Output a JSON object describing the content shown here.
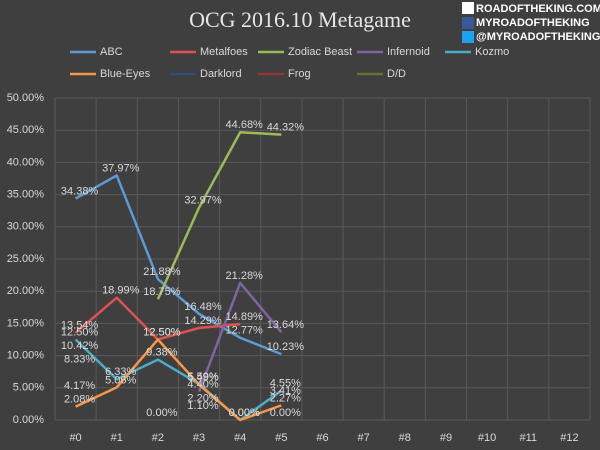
{
  "chart_data": {
    "type": "line",
    "title": "OCG 2016.10 Metagame",
    "watermark": [
      "ROADOFTHEKING.COM",
      "MYROADOFTHEKING",
      "@MYROADOFTHEKING"
    ],
    "categories": [
      "#0",
      "#1",
      "#2",
      "#3",
      "#4",
      "#5",
      "#6",
      "#7",
      "#8",
      "#9",
      "#10",
      "#11",
      "#12"
    ],
    "ylim": [
      0,
      50
    ],
    "yticks": [
      {
        "value": 0,
        "label": "0.00%"
      },
      {
        "value": 5,
        "label": "5.00%"
      },
      {
        "value": 10,
        "label": "10.00%"
      },
      {
        "value": 15,
        "label": "15.00%"
      },
      {
        "value": 20,
        "label": "20.00%"
      },
      {
        "value": 25,
        "label": "25.00%"
      },
      {
        "value": 30,
        "label": "30.00%"
      },
      {
        "value": 35,
        "label": "35.00%"
      },
      {
        "value": 40,
        "label": "40.00%"
      },
      {
        "value": 45,
        "label": "45.00%"
      },
      {
        "value": 50,
        "label": "50.00%"
      }
    ],
    "grid": true,
    "legend": "top",
    "series": [
      {
        "name": "ABC",
        "color": "#5b9bd5",
        "values": [
          34.38,
          37.97,
          21.88,
          16.48,
          12.77,
          10.23,
          null,
          null,
          null,
          null,
          null,
          null,
          null
        ],
        "value_labels": [
          "34.38%",
          "37.97%",
          "21.88%",
          "16.48%",
          "12.77%",
          "10.23%",
          null,
          null,
          null,
          null,
          null,
          null,
          null
        ]
      },
      {
        "name": "Metalfoes",
        "color": "#e0524f",
        "values": [
          13.54,
          18.99,
          12.5,
          14.29,
          14.89,
          null,
          null,
          null,
          null,
          null,
          null,
          null,
          null
        ],
        "value_labels": [
          "13.54%",
          "18.99%",
          "12.50%",
          "14.29%",
          "14.89%",
          null,
          null,
          null,
          null,
          null,
          null,
          null,
          null
        ]
      },
      {
        "name": "Zodiac Beast",
        "color": "#9bbb59",
        "values": [
          null,
          null,
          18.75,
          32.97,
          44.68,
          44.32,
          null,
          null,
          null,
          null,
          null,
          null,
          null
        ],
        "value_labels": [
          null,
          null,
          "18.75%",
          "32.97%",
          "44.68%",
          "44.32%",
          null,
          null,
          null,
          null,
          null,
          null,
          null
        ]
      },
      {
        "name": "Infernoid",
        "color": "#8064a2",
        "values": [
          null,
          null,
          null,
          4.4,
          21.28,
          13.64,
          null,
          null,
          null,
          null,
          null,
          null,
          null
        ],
        "value_labels": [
          null,
          null,
          null,
          "4.40%",
          "21.28%",
          "13.64%",
          null,
          null,
          null,
          null,
          null,
          null,
          null
        ]
      },
      {
        "name": "Kozmo",
        "color": "#4bacc6",
        "values": [
          12.5,
          6.33,
          9.38,
          5.59,
          0,
          4.55,
          null,
          null,
          null,
          null,
          null,
          null,
          null
        ],
        "value_labels": [
          "12.50%",
          "6.33%",
          "9.38%",
          "5.59%",
          "0.00%",
          "4.55%",
          null,
          null,
          null,
          null,
          null,
          null,
          null
        ]
      },
      {
        "name": "Blue-Eyes",
        "color": "#f79646",
        "values": [
          2.08,
          5.06,
          12.5,
          5.49,
          0,
          2.27,
          null,
          null,
          null,
          null,
          null,
          null,
          null
        ],
        "value_labels": [
          "2.08%",
          "5.06%",
          "12.50%",
          "5.49%",
          "0.00%",
          "2.27%",
          null,
          null,
          null,
          null,
          null,
          null,
          null
        ]
      },
      {
        "name": "Darklord",
        "color": "#2c4d75",
        "values": [
          10.42,
          null,
          null,
          2.2,
          null,
          3.41,
          null,
          null,
          null,
          null,
          null,
          null,
          null
        ],
        "value_labels": [
          "10.42%",
          null,
          null,
          "2.20%",
          null,
          "3.41%",
          null,
          null,
          null,
          null,
          null,
          null,
          null
        ]
      },
      {
        "name": "Frog",
        "color": "#943634",
        "values": [
          8.33,
          null,
          null,
          1.1,
          null,
          null,
          null,
          null,
          null,
          null,
          null,
          null,
          null
        ],
        "value_labels": [
          "8.33%",
          null,
          null,
          "1.10%",
          null,
          null,
          null,
          null,
          null,
          null,
          null,
          null,
          null
        ]
      },
      {
        "name": "D/D",
        "color": "#5f7530",
        "values": [
          4.17,
          null,
          0,
          null,
          null,
          0,
          null,
          null,
          null,
          null,
          null,
          null,
          null
        ],
        "value_labels": [
          "4.17%",
          null,
          "0.00%",
          null,
          null,
          "0.00%",
          null,
          null,
          null,
          null,
          null,
          null,
          null
        ]
      }
    ]
  }
}
